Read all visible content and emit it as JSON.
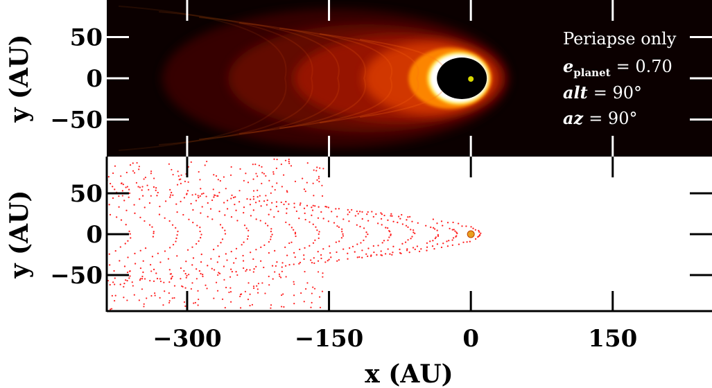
{
  "chart_data": [
    {
      "type": "heatmap",
      "panel": "top",
      "xlim": [
        -385,
        255
      ],
      "ylim": [
        -95,
        95
      ],
      "yticks": [
        50,
        0,
        -50
      ],
      "ytick_labels": [
        "50",
        "0",
        "−50"
      ],
      "ylabel": "y (AU)",
      "colormap": "hot",
      "background_color": "#0b0000",
      "planet": {
        "x": 0,
        "y": 0,
        "color": "#d8d800"
      },
      "annotations": {
        "line1": "Periapse only",
        "line2_sym": "e",
        "line2_sub": "planet",
        "line2_val": "= 0.70",
        "line3_sym": "alt",
        "line3_val": "= 90°",
        "line4_sym": "az",
        "line4_val": "= 90°"
      }
    },
    {
      "type": "scatter",
      "panel": "bottom",
      "xlim": [
        -385,
        255
      ],
      "ylim": [
        -95,
        95
      ],
      "xticks": [
        -300,
        -150,
        0,
        150,
        300
      ],
      "xtick_labels": [
        "−300",
        "−150",
        "0",
        "150",
        "300"
      ],
      "yticks": [
        50,
        0,
        -50
      ],
      "ytick_labels": [
        "50",
        "0",
        "−50"
      ],
      "xlabel": "x (AU)",
      "ylabel": "y (AU)",
      "point_color": "#ff2020",
      "planet": {
        "x": 0,
        "y": 0,
        "color": "#e8a020"
      },
      "arcs": {
        "vertex_x": [
          10,
          -15,
          -35,
          -60,
          -85,
          -110,
          -135,
          -160,
          -185,
          -210,
          -235,
          -260,
          -285,
          -310,
          -335,
          -360,
          -385
        ],
        "y_extent_range": [
          30,
          90
        ]
      }
    }
  ]
}
